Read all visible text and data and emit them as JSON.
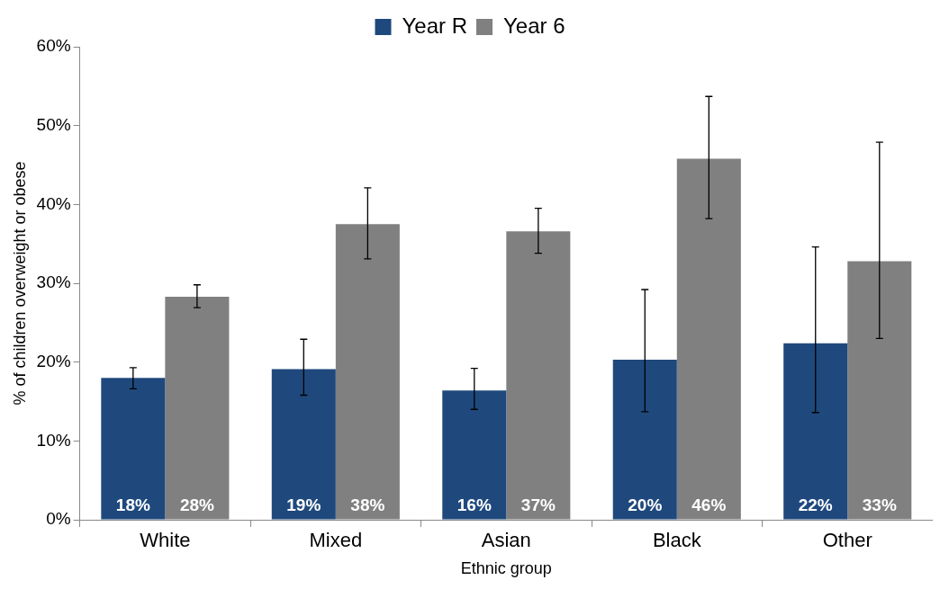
{
  "chart_data": {
    "type": "bar",
    "xlabel": "Ethnic group",
    "ylabel": "% of children overweight or obese",
    "categories": [
      "White",
      "Mixed",
      "Asian",
      "Black",
      "Other"
    ],
    "series": [
      {
        "name": "Year R",
        "color": "#1f497d",
        "values": [
          18.0,
          19.1,
          16.4,
          20.3,
          22.4
        ],
        "errors": [
          [
            16.6,
            19.3
          ],
          [
            15.8,
            22.9
          ],
          [
            14.0,
            19.2
          ],
          [
            13.7,
            29.2
          ],
          [
            13.6,
            34.6
          ]
        ],
        "value_labels": [
          "18%",
          "19%",
          "16%",
          "20%",
          "22%"
        ]
      },
      {
        "name": "Year 6",
        "color": "#808080",
        "values": [
          28.3,
          37.5,
          36.6,
          45.8,
          32.8
        ],
        "errors": [
          [
            26.9,
            29.8
          ],
          [
            33.1,
            42.1
          ],
          [
            33.8,
            39.5
          ],
          [
            38.2,
            53.7
          ],
          [
            23.0,
            47.9
          ]
        ],
        "value_labels": [
          "28%",
          "38%",
          "37%",
          "46%",
          "33%"
        ]
      }
    ],
    "ylim": [
      0,
      60
    ],
    "yticks": [
      {
        "value": 0,
        "label": "0%"
      },
      {
        "value": 10,
        "label": "10%"
      },
      {
        "value": 20,
        "label": "20%"
      },
      {
        "value": 30,
        "label": "30%"
      },
      {
        "value": 40,
        "label": "40%"
      },
      {
        "value": 50,
        "label": "50%"
      },
      {
        "value": 60,
        "label": "60%"
      }
    ],
    "grid": false,
    "legend": "top"
  }
}
